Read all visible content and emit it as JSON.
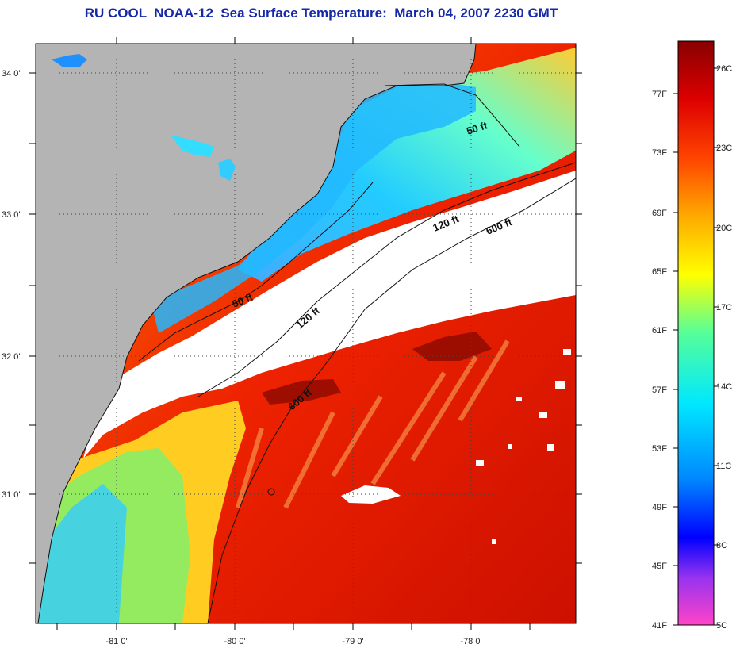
{
  "title": "RU COOL  NOAA-12  Sea Surface Temperature:  March 04, 2007 2230 GMT",
  "map": {
    "lat_labels": [
      "34 0'",
      "33 0'",
      "32 0'",
      "31 0'"
    ],
    "lon_labels": [
      "-81 0'",
      "-80 0'",
      "-79 0'",
      "-78 0'"
    ],
    "contours": [
      {
        "label": "50 ft",
        "depth_ft": 50
      },
      {
        "label": "120 ft",
        "depth_ft": 120
      },
      {
        "label": "600 ft",
        "depth_ft": 600
      }
    ],
    "colors": {
      "land": "#b4b4b4",
      "cloud": "#ffffff"
    }
  },
  "colorbar": {
    "fahrenheit_labels": [
      "77F",
      "73F",
      "69F",
      "65F",
      "61F",
      "57F",
      "53F",
      "49F",
      "45F",
      "41F"
    ],
    "celsius_labels": [
      "26C",
      "23C",
      "20C",
      "17C",
      "14C",
      "11C",
      "8C",
      "5C"
    ],
    "stops": [
      "#ff44c8",
      "#9933ee",
      "#0000ff",
      "#0088ff",
      "#00e8ff",
      "#55ff99",
      "#ffff00",
      "#ffaa00",
      "#ff4400",
      "#dd0000",
      "#880000"
    ]
  }
}
